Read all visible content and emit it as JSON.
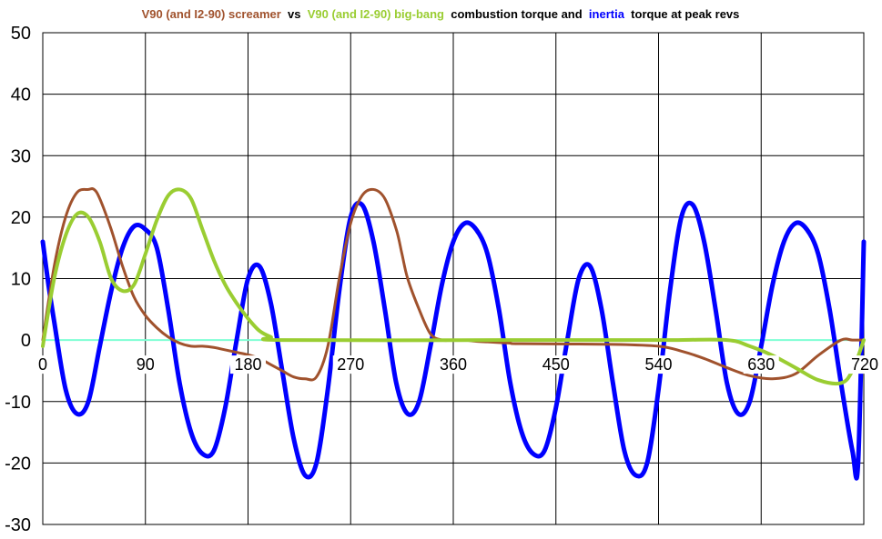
{
  "chart_data": {
    "type": "line",
    "title_parts": [
      {
        "text": "V90 (and I2-90) screamer",
        "color": "#a0522d"
      },
      {
        "text": " vs ",
        "color": "#000000"
      },
      {
        "text": "V90 (and I2-90) big-bang",
        "color": "#9acd32"
      },
      {
        "text": " combustion torque and ",
        "color": "#000000"
      },
      {
        "text": "inertia",
        "color": "#0000ff"
      },
      {
        "text": " torque at peak revs",
        "color": "#000000"
      }
    ],
    "xlabel": "",
    "ylabel": "",
    "xlim": [
      0,
      720
    ],
    "ylim": [
      -30,
      50
    ],
    "x_ticks": [
      0,
      90,
      180,
      270,
      360,
      450,
      540,
      630,
      720
    ],
    "x_tick_labels": [
      "0",
      "90",
      "180",
      "270",
      "360",
      "450",
      "540",
      "630",
      "720"
    ],
    "y_ticks": [
      -30,
      -20,
      -10,
      0,
      10,
      20,
      30,
      40,
      50
    ],
    "y_tick_labels": [
      "-30",
      "-20",
      "-10",
      "0",
      "10",
      "20",
      "30",
      "40",
      "50"
    ],
    "grid": true,
    "legend": "none",
    "colors": {
      "inertia": "#0000ff",
      "screamer": "#a0522d",
      "bigbang": "#9acd32",
      "zero_line": "#7fffd4"
    },
    "series": [
      {
        "key": "inertia",
        "x": [
          0,
          5,
          10,
          20,
          30,
          40,
          50,
          60,
          70,
          80,
          90,
          100,
          110,
          120,
          130,
          140,
          150,
          160,
          170,
          180,
          190,
          200,
          210,
          220,
          230,
          240,
          250,
          260,
          270,
          280,
          290,
          300,
          310,
          320,
          330,
          340,
          350,
          360,
          370,
          380,
          390,
          400,
          410,
          420,
          430,
          440,
          450,
          460,
          470,
          480,
          490,
          500,
          510,
          520,
          530,
          540,
          550,
          560,
          570,
          580,
          590,
          600,
          610,
          620,
          630,
          640,
          650,
          660,
          670,
          680,
          690,
          700,
          710,
          715,
          720
        ],
        "y": [
          16,
          9,
          3,
          -8,
          -12,
          -10,
          -1,
          8,
          15,
          18.5,
          18,
          15,
          5,
          -7,
          -15,
          -18.5,
          -18,
          -11,
          0,
          10,
          12,
          6,
          -5,
          -16,
          -22,
          -20,
          -8,
          8,
          20,
          22,
          16,
          5,
          -7,
          -12,
          -10,
          -1,
          9,
          16,
          19,
          18,
          14,
          5,
          -7,
          -15,
          -18.5,
          -18,
          -11,
          0,
          10,
          12,
          5,
          -7,
          -18,
          -22,
          -20,
          -8,
          8,
          20,
          22,
          16,
          5,
          -7,
          -12,
          -10,
          -1,
          9,
          16,
          19,
          18,
          14,
          5,
          -7,
          -18,
          -20,
          16
        ]
      },
      {
        "key": "screamer",
        "x": [
          0,
          10,
          20,
          30,
          40,
          45,
          50,
          60,
          70,
          80,
          90,
          100,
          110,
          120,
          130,
          140,
          150,
          160,
          170,
          180,
          190,
          200,
          210,
          220,
          230,
          240,
          250,
          260,
          270,
          280,
          290,
          300,
          310,
          315,
          320,
          330,
          340,
          350,
          360,
          370,
          380,
          390,
          400,
          410,
          420,
          500,
          540,
          560,
          580,
          600,
          620,
          640,
          660,
          680,
          700,
          710,
          720
        ],
        "y": [
          0,
          12,
          20,
          24,
          24.5,
          24.5,
          23,
          18,
          12,
          7,
          4,
          2,
          0.5,
          -0.5,
          -1,
          -1,
          -1.2,
          -1.6,
          -2,
          -2.4,
          -3,
          -4,
          -5,
          -6,
          -6.3,
          -6,
          -1,
          10,
          19,
          23.5,
          24.5,
          23,
          18,
          14,
          10,
          5,
          1,
          0,
          0,
          0,
          -0.2,
          -0.3,
          -0.4,
          -0.5,
          -0.6,
          -0.7,
          -1,
          -1.8,
          -3,
          -4.5,
          -5.8,
          -6.3,
          -5.5,
          -2.5,
          0,
          0,
          0
        ]
      },
      {
        "key": "bigbang",
        "x": [
          0,
          10,
          20,
          30,
          40,
          50,
          60,
          70,
          80,
          90,
          100,
          110,
          120,
          130,
          140,
          150,
          160,
          170,
          180,
          190,
          200,
          210,
          400,
          500,
          550,
          600,
          620,
          640,
          660,
          680,
          700,
          710,
          720
        ],
        "y": [
          -1,
          10,
          17,
          20.5,
          20,
          16,
          10,
          8,
          9,
          14,
          19.5,
          23.5,
          24.5,
          23,
          18,
          13,
          9,
          6,
          3.5,
          1.5,
          0.5,
          0,
          0,
          0,
          0,
          0,
          -1,
          -2.5,
          -4.5,
          -6.5,
          -7,
          -5,
          0
        ]
      }
    ]
  }
}
